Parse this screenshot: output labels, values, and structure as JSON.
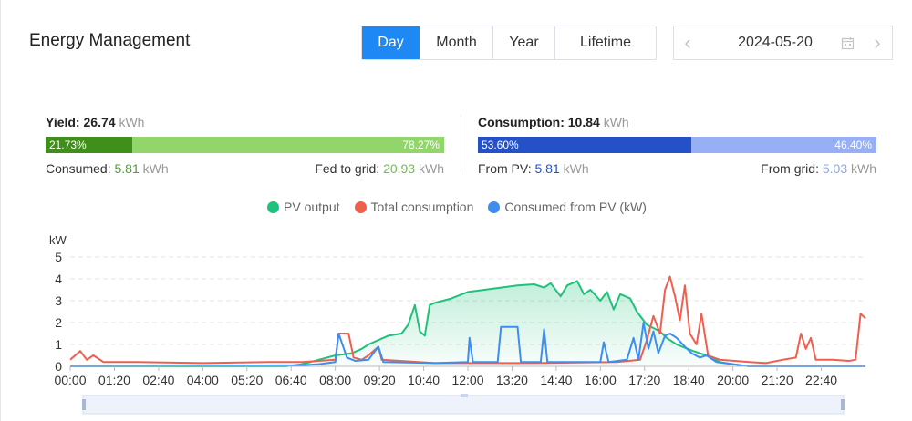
{
  "header": {
    "title": "Energy Management",
    "tabs": [
      {
        "label": "Day",
        "active": true
      },
      {
        "label": "Month",
        "active": false
      },
      {
        "label": "Year",
        "active": false
      },
      {
        "label": "Lifetime",
        "active": false
      }
    ],
    "date": "2024-05-20",
    "prev_icon": "chevron-left-icon",
    "next_icon": "chevron-right-icon",
    "calendar_icon": "calendar-icon"
  },
  "yield": {
    "label": "Yield:",
    "value": "26.74",
    "unit": "kWh",
    "bar_left_pct": "21.73%",
    "bar_right_pct": "78.27%",
    "bar_left_fraction": 0.2173,
    "bar_left_color": "#3f8f1a",
    "bar_right_color": "#92d66b",
    "left_label": "Consumed:",
    "left_value": "5.81",
    "left_unit": "kWh",
    "right_label": "Fed to grid:",
    "right_value": "20.93",
    "right_unit": "kWh",
    "value_color": "#4c9f2c",
    "right_value_color": "#6cc24a"
  },
  "consumption": {
    "label": "Consumption:",
    "value": "10.84",
    "unit": "kWh",
    "bar_left_pct": "53.60%",
    "bar_right_pct": "46.40%",
    "bar_left_fraction": 0.536,
    "bar_left_color": "#2450c8",
    "bar_right_color": "#97aff5",
    "left_label": "From PV:",
    "left_value": "5.81",
    "left_unit": "kWh",
    "right_label": "From grid:",
    "right_value": "5.03",
    "right_unit": "kWh",
    "value_color": "#2450c8",
    "right_value_color": "#8aa6ee"
  },
  "chart_data": {
    "type": "line",
    "ylabel": "kW",
    "ylim": [
      0,
      5
    ],
    "yticks": [
      "0",
      "1",
      "2",
      "3",
      "4",
      "5"
    ],
    "xlim_hours": [
      0,
      24
    ],
    "xticks": [
      "00:00",
      "01:20",
      "02:40",
      "04:00",
      "05:20",
      "06:40",
      "08:00",
      "09:20",
      "10:40",
      "12:00",
      "13:20",
      "14:40",
      "16:00",
      "17:20",
      "18:40",
      "20:00",
      "21:20",
      "22:40"
    ],
    "grid": true,
    "legend_position": "top-center",
    "series": [
      {
        "name": "PV output",
        "color": "#1fc27a",
        "area": true,
        "points": [
          [
            0,
            0
          ],
          [
            6.5,
            0
          ],
          [
            7,
            0.1
          ],
          [
            7.5,
            0.3
          ],
          [
            8,
            0.5
          ],
          [
            8.5,
            0.6
          ],
          [
            8.8,
            0.8
          ],
          [
            9,
            1.0
          ],
          [
            9.3,
            1.2
          ],
          [
            9.6,
            1.4
          ],
          [
            10,
            1.5
          ],
          [
            10.2,
            1.9
          ],
          [
            10.4,
            2.8
          ],
          [
            10.55,
            1.6
          ],
          [
            10.7,
            1.4
          ],
          [
            10.85,
            2.8
          ],
          [
            11,
            2.9
          ],
          [
            11.5,
            3.1
          ],
          [
            12,
            3.4
          ],
          [
            12.5,
            3.5
          ],
          [
            13,
            3.6
          ],
          [
            13.5,
            3.7
          ],
          [
            14,
            3.75
          ],
          [
            14.3,
            3.6
          ],
          [
            14.5,
            3.8
          ],
          [
            14.8,
            3.2
          ],
          [
            15,
            3.7
          ],
          [
            15.3,
            3.9
          ],
          [
            15.5,
            3.3
          ],
          [
            15.7,
            3.5
          ],
          [
            16,
            3.0
          ],
          [
            16.2,
            3.4
          ],
          [
            16.4,
            2.6
          ],
          [
            16.6,
            3.3
          ],
          [
            16.9,
            3.1
          ],
          [
            17.1,
            2.5
          ],
          [
            17.4,
            1.9
          ],
          [
            17.8,
            1.6
          ],
          [
            18,
            1.3
          ],
          [
            18.3,
            1.0
          ],
          [
            18.8,
            0.7
          ],
          [
            19.2,
            0.5
          ],
          [
            19.6,
            0.2
          ],
          [
            20,
            0.1
          ],
          [
            20.5,
            0
          ],
          [
            24,
            0
          ]
        ]
      },
      {
        "name": "Total consumption",
        "color": "#ee5f4e",
        "area": false,
        "points": [
          [
            0,
            0.3
          ],
          [
            0.3,
            0.7
          ],
          [
            0.5,
            0.3
          ],
          [
            0.7,
            0.5
          ],
          [
            1,
            0.2
          ],
          [
            2,
            0.2
          ],
          [
            4,
            0.15
          ],
          [
            6,
            0.2
          ],
          [
            7,
            0.2
          ],
          [
            7.5,
            0.25
          ],
          [
            8,
            0.3
          ],
          [
            8.1,
            1.5
          ],
          [
            8.4,
            1.5
          ],
          [
            8.55,
            0.4
          ],
          [
            8.8,
            0.3
          ],
          [
            9,
            0.5
          ],
          [
            9.3,
            0.9
          ],
          [
            9.4,
            0.3
          ],
          [
            11,
            0.15
          ],
          [
            14,
            0.15
          ],
          [
            16.5,
            0.2
          ],
          [
            17.2,
            0.3
          ],
          [
            17.4,
            1.2
          ],
          [
            17.6,
            2.3
          ],
          [
            17.8,
            1.5
          ],
          [
            17.95,
            3.5
          ],
          [
            18.1,
            4.1
          ],
          [
            18.25,
            3.2
          ],
          [
            18.4,
            2.1
          ],
          [
            18.55,
            3.7
          ],
          [
            18.7,
            1.5
          ],
          [
            18.9,
            1.0
          ],
          [
            19.05,
            2.4
          ],
          [
            19.25,
            0.5
          ],
          [
            19.6,
            0.3
          ],
          [
            20.5,
            0.2
          ],
          [
            21,
            0.15
          ],
          [
            21.5,
            0.3
          ],
          [
            21.9,
            0.4
          ],
          [
            22.05,
            1.5
          ],
          [
            22.2,
            0.8
          ],
          [
            22.35,
            1.3
          ],
          [
            22.5,
            0.3
          ],
          [
            23,
            0.3
          ],
          [
            23.5,
            0.25
          ],
          [
            23.7,
            0.3
          ],
          [
            23.85,
            2.4
          ],
          [
            24,
            2.2
          ]
        ]
      },
      {
        "name": "Consumed from PV (kW)",
        "color": "#3d8ef0",
        "area": false,
        "points": [
          [
            0,
            0
          ],
          [
            7,
            0.05
          ],
          [
            7.5,
            0.1
          ],
          [
            8,
            0.2
          ],
          [
            8.1,
            1.5
          ],
          [
            8.35,
            0.4
          ],
          [
            8.6,
            0.25
          ],
          [
            9,
            0.3
          ],
          [
            9.3,
            0.9
          ],
          [
            9.45,
            0.2
          ],
          [
            11,
            0.15
          ],
          [
            12,
            0.2
          ],
          [
            12.05,
            1.3
          ],
          [
            12.15,
            0.2
          ],
          [
            12.9,
            0.2
          ],
          [
            13.0,
            1.8
          ],
          [
            13.5,
            1.8
          ],
          [
            13.6,
            0.2
          ],
          [
            14.2,
            0.2
          ],
          [
            14.3,
            1.7
          ],
          [
            14.4,
            0.2
          ],
          [
            16,
            0.2
          ],
          [
            16.1,
            1.1
          ],
          [
            16.25,
            0.2
          ],
          [
            16.8,
            0.3
          ],
          [
            17.0,
            1.3
          ],
          [
            17.15,
            0.3
          ],
          [
            17.3,
            2.0
          ],
          [
            17.45,
            0.8
          ],
          [
            17.6,
            1.6
          ],
          [
            17.75,
            0.6
          ],
          [
            17.95,
            1.4
          ],
          [
            18.1,
            1.5
          ],
          [
            18.3,
            1.3
          ],
          [
            18.55,
            0.9
          ],
          [
            18.75,
            0.6
          ],
          [
            19.0,
            0.4
          ],
          [
            19.2,
            0.5
          ],
          [
            19.5,
            0.2
          ],
          [
            20,
            0.1
          ],
          [
            20.5,
            0
          ],
          [
            24,
            0
          ]
        ]
      }
    ]
  }
}
